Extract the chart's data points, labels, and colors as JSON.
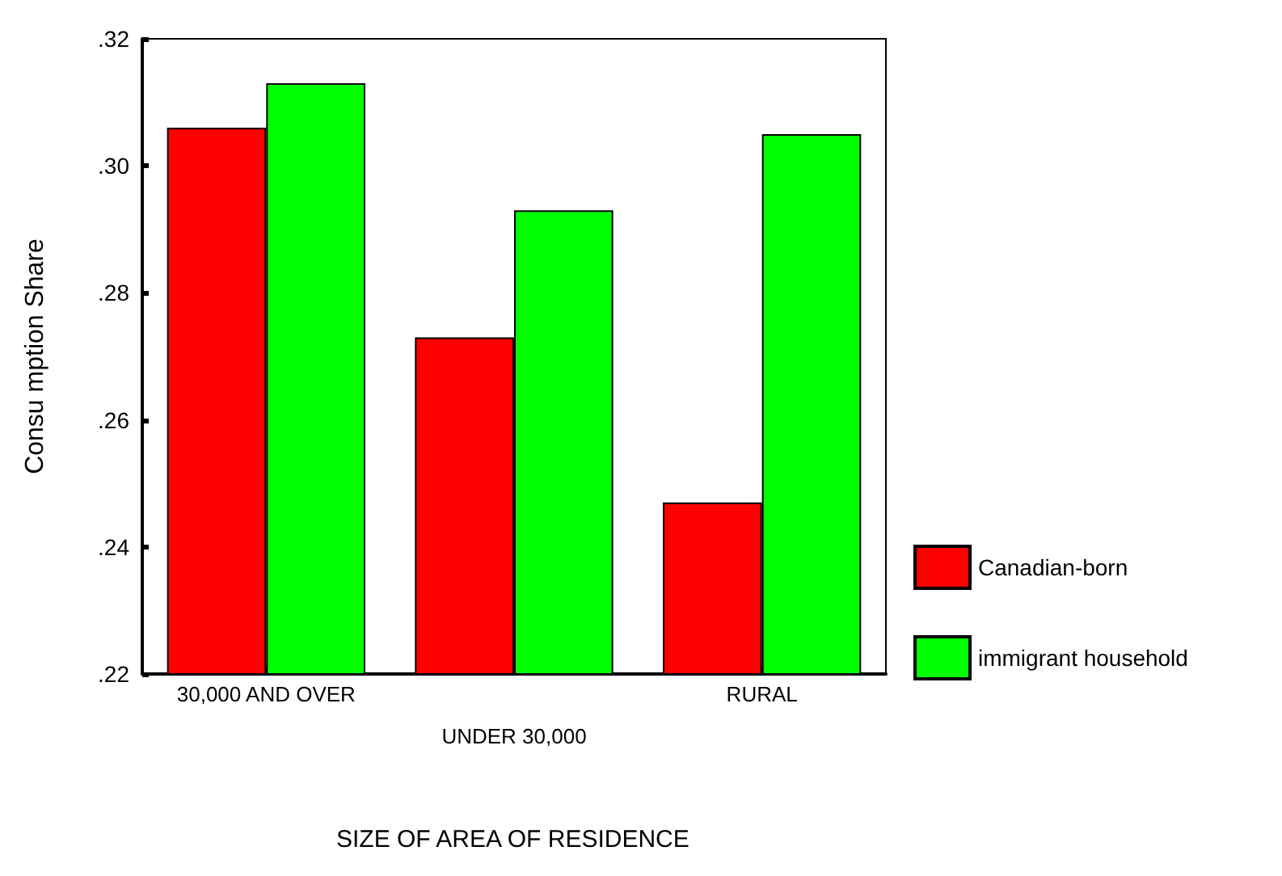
{
  "chart_data": {
    "type": "bar",
    "xlabel": "SIZE OF AREA OF RESIDENCE",
    "ylabel": "Consu mption Share",
    "categories": [
      "30,000 AND OVER",
      "UNDER 30,000",
      "RURAL"
    ],
    "series": [
      {
        "name": "Canadian-born",
        "color": "#ff0000",
        "values": [
          0.306,
          0.273,
          0.247
        ]
      },
      {
        "name": "immigrant household",
        "color": "#00ff00",
        "values": [
          0.313,
          0.293,
          0.305
        ]
      }
    ],
    "ylim": [
      0.22,
      0.32
    ],
    "yticks": [
      {
        "value": 0.22,
        "label": ".22"
      },
      {
        "value": 0.24,
        "label": ".24"
      },
      {
        "value": 0.26,
        "label": ".26"
      },
      {
        "value": 0.28,
        "label": ".28"
      },
      {
        "value": 0.3,
        "label": ".30"
      },
      {
        "value": 0.32,
        "label": ".32"
      }
    ],
    "grid": false,
    "legend": "right"
  }
}
